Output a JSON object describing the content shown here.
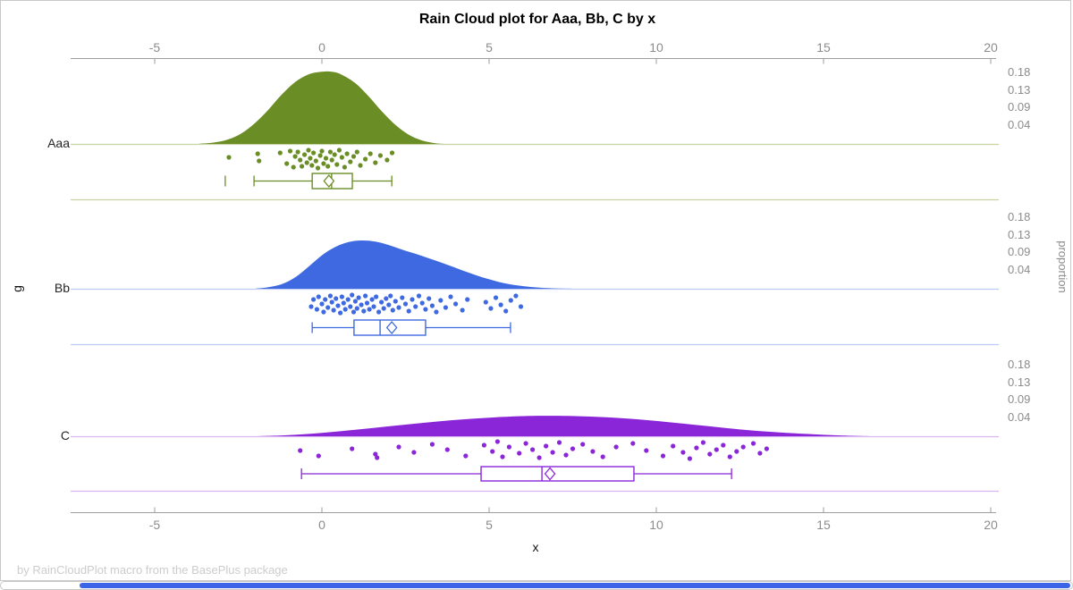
{
  "title": "Rain Cloud plot for Aaa, Bb, C by x",
  "footer_note": "by RainCloudPlot macro from the BasePlus package",
  "axes": {
    "x_label": "x",
    "y_label": "g",
    "y2_label": "proportion",
    "x_tick_labels": [
      "-5",
      "0",
      "5",
      "10",
      "15",
      "20"
    ],
    "y2_tick_labels": [
      "0.18",
      "0.13",
      "0.09",
      "0.04"
    ]
  },
  "colors": {
    "axis_line": "#9d9d9d",
    "tick_label": "#8c8c8c",
    "frame_border": "#c9c9c9",
    "footer_text": "#cccccc",
    "scrollbar_thumb": "#3c64e6"
  },
  "chart_data": {
    "type": "raincloud",
    "title": "Rain Cloud plot for Aaa, Bb, C by x",
    "xlabel": "x",
    "ylabel": "g",
    "y2label": "proportion",
    "x_axis_range": [
      -7.5,
      20.2
    ],
    "x_ticks": [
      -5,
      0,
      5,
      10,
      15,
      20
    ],
    "proportion_ticks": [
      0.18,
      0.13,
      0.09,
      0.04
    ],
    "legend": "none",
    "groups": [
      {
        "name": "Aaa",
        "color": "#6a8d26",
        "light_color": "#c8d2a4",
        "density": [
          [
            -3.7,
            0
          ],
          [
            -3.2,
            0.004
          ],
          [
            -2.8,
            0.012
          ],
          [
            -2.4,
            0.028
          ],
          [
            -2.0,
            0.055
          ],
          [
            -1.6,
            0.09
          ],
          [
            -1.2,
            0.13
          ],
          [
            -0.8,
            0.163
          ],
          [
            -0.4,
            0.183
          ],
          [
            0,
            0.19
          ],
          [
            0.3,
            0.19
          ],
          [
            0.6,
            0.182
          ],
          [
            1.0,
            0.16
          ],
          [
            1.4,
            0.125
          ],
          [
            1.8,
            0.085
          ],
          [
            2.2,
            0.05
          ],
          [
            2.6,
            0.024
          ],
          [
            3.0,
            0.009
          ],
          [
            3.4,
            0.002
          ],
          [
            3.7,
            0
          ]
        ],
        "points": [
          [
            -2.78,
            15
          ],
          [
            -1.92,
            11
          ],
          [
            -1.88,
            19
          ],
          [
            -1.25,
            10
          ],
          [
            -1.05,
            22
          ],
          [
            -0.95,
            8
          ],
          [
            -0.85,
            26
          ],
          [
            -0.8,
            14
          ],
          [
            -0.72,
            9
          ],
          [
            -0.65,
            18
          ],
          [
            -0.6,
            25
          ],
          [
            -0.52,
            12
          ],
          [
            -0.45,
            21
          ],
          [
            -0.4,
            7
          ],
          [
            -0.35,
            16
          ],
          [
            -0.3,
            24
          ],
          [
            -0.25,
            10
          ],
          [
            -0.18,
            19
          ],
          [
            -0.12,
            27
          ],
          [
            -0.05,
            13
          ],
          [
            0,
            8
          ],
          [
            0.05,
            22
          ],
          [
            0.12,
            16
          ],
          [
            0.18,
            25
          ],
          [
            0.25,
            9
          ],
          [
            0.3,
            18
          ],
          [
            0.38,
            12
          ],
          [
            0.45,
            23
          ],
          [
            0.52,
            7
          ],
          [
            0.6,
            15
          ],
          [
            0.68,
            26
          ],
          [
            0.75,
            11
          ],
          [
            0.85,
            20
          ],
          [
            0.95,
            14
          ],
          [
            1.05,
            9
          ],
          [
            1.15,
            24
          ],
          [
            1.3,
            17
          ],
          [
            1.45,
            11
          ],
          [
            1.6,
            21
          ],
          [
            1.75,
            13
          ],
          [
            1.95,
            18
          ],
          [
            2.1,
            10
          ]
        ],
        "box": {
          "outliers": [
            -2.89
          ],
          "whisker_low": -2.03,
          "q1": -0.29,
          "median": 0.29,
          "q3": 0.91,
          "whisker_high": 2.09,
          "mean": 0.21
        }
      },
      {
        "name": "Bb",
        "color": "#3e69e1",
        "light_color": "#bdccf2",
        "density": [
          [
            -2.0,
            0
          ],
          [
            -1.6,
            0.004
          ],
          [
            -1.2,
            0.012
          ],
          [
            -0.8,
            0.03
          ],
          [
            -0.4,
            0.058
          ],
          [
            0,
            0.088
          ],
          [
            0.4,
            0.11
          ],
          [
            0.8,
            0.123
          ],
          [
            1.2,
            0.127
          ],
          [
            1.6,
            0.124
          ],
          [
            2.0,
            0.115
          ],
          [
            2.4,
            0.103
          ],
          [
            2.8,
            0.092
          ],
          [
            3.2,
            0.08
          ],
          [
            3.6,
            0.068
          ],
          [
            4.0,
            0.055
          ],
          [
            4.4,
            0.042
          ],
          [
            4.8,
            0.03
          ],
          [
            5.2,
            0.02
          ],
          [
            5.6,
            0.012
          ],
          [
            6.0,
            0.007
          ],
          [
            6.5,
            0.003
          ],
          [
            7.0,
            0.001
          ],
          [
            7.5,
            0
          ]
        ],
        "points": [
          [
            -0.32,
            20
          ],
          [
            -0.25,
            12
          ],
          [
            -0.15,
            23
          ],
          [
            -0.1,
            9
          ],
          [
            0,
            17
          ],
          [
            0.05,
            26
          ],
          [
            0.1,
            12
          ],
          [
            0.18,
            21
          ],
          [
            0.25,
            8
          ],
          [
            0.3,
            15
          ],
          [
            0.35,
            24
          ],
          [
            0.42,
            11
          ],
          [
            0.48,
            19
          ],
          [
            0.55,
            27
          ],
          [
            0.6,
            9
          ],
          [
            0.65,
            16
          ],
          [
            0.7,
            23
          ],
          [
            0.78,
            12
          ],
          [
            0.85,
            20
          ],
          [
            0.9,
            7
          ],
          [
            0.95,
            26
          ],
          [
            1.0,
            14
          ],
          [
            1.05,
            22
          ],
          [
            1.1,
            10
          ],
          [
            1.18,
            18
          ],
          [
            1.25,
            25
          ],
          [
            1.3,
            8
          ],
          [
            1.35,
            16
          ],
          [
            1.42,
            23
          ],
          [
            1.5,
            12
          ],
          [
            1.55,
            20
          ],
          [
            1.62,
            9
          ],
          [
            1.7,
            26
          ],
          [
            1.78,
            15
          ],
          [
            1.85,
            22
          ],
          [
            1.92,
            11
          ],
          [
            2.0,
            18
          ],
          [
            2.05,
            8
          ],
          [
            2.12,
            24
          ],
          [
            2.2,
            14
          ],
          [
            2.3,
            21
          ],
          [
            2.4,
            10
          ],
          [
            2.5,
            17
          ],
          [
            2.6,
            25
          ],
          [
            2.7,
            12
          ],
          [
            2.8,
            20
          ],
          [
            2.9,
            8
          ],
          [
            3.0,
            16
          ],
          [
            3.1,
            23
          ],
          [
            3.2,
            11
          ],
          [
            3.3,
            19
          ],
          [
            3.42,
            26
          ],
          [
            3.55,
            13
          ],
          [
            3.7,
            21
          ],
          [
            3.85,
            9
          ],
          [
            4.0,
            17
          ],
          [
            4.2,
            24
          ],
          [
            4.35,
            12
          ],
          [
            4.9,
            15
          ],
          [
            5.05,
            22
          ],
          [
            5.2,
            10
          ],
          [
            5.35,
            18
          ],
          [
            5.5,
            25
          ],
          [
            5.65,
            13
          ],
          [
            5.8,
            8
          ],
          [
            5.95,
            20
          ]
        ],
        "box": {
          "outliers": [],
          "whisker_low": -0.29,
          "q1": 0.96,
          "median": 1.74,
          "q3": 3.1,
          "whisker_high": 5.64,
          "mean": 2.09
        }
      },
      {
        "name": "C",
        "color": "#8b26d8",
        "light_color": "#d9b6ee",
        "density": [
          [
            -2.0,
            0
          ],
          [
            -1.0,
            0.003
          ],
          [
            0,
            0.009
          ],
          [
            1.0,
            0.017
          ],
          [
            2.0,
            0.026
          ],
          [
            3.0,
            0.035
          ],
          [
            4.0,
            0.043
          ],
          [
            5.0,
            0.049
          ],
          [
            6.0,
            0.053
          ],
          [
            6.8,
            0.054
          ],
          [
            7.6,
            0.053
          ],
          [
            8.5,
            0.05
          ],
          [
            9.5,
            0.044
          ],
          [
            10.5,
            0.036
          ],
          [
            11.5,
            0.027
          ],
          [
            12.5,
            0.018
          ],
          [
            13.5,
            0.011
          ],
          [
            14.5,
            0.006
          ],
          [
            15.5,
            0.002
          ],
          [
            16.5,
            0
          ]
        ],
        "points": [
          [
            -0.65,
            16
          ],
          [
            -0.1,
            22
          ],
          [
            0.9,
            14
          ],
          [
            1.6,
            20
          ],
          [
            1.65,
            24
          ],
          [
            2.3,
            12
          ],
          [
            2.75,
            18
          ],
          [
            3.3,
            9
          ],
          [
            3.75,
            15
          ],
          [
            4.3,
            22
          ],
          [
            4.85,
            10
          ],
          [
            5.1,
            17
          ],
          [
            5.25,
            6
          ],
          [
            5.4,
            23
          ],
          [
            5.6,
            12
          ],
          [
            5.9,
            19
          ],
          [
            6.1,
            8
          ],
          [
            6.3,
            15
          ],
          [
            6.5,
            24
          ],
          [
            6.7,
            11
          ],
          [
            6.9,
            18
          ],
          [
            7.1,
            7
          ],
          [
            7.3,
            21
          ],
          [
            7.5,
            14
          ],
          [
            7.8,
            9
          ],
          [
            8.1,
            17
          ],
          [
            8.4,
            23
          ],
          [
            8.8,
            12
          ],
          [
            9.3,
            8
          ],
          [
            9.7,
            16
          ],
          [
            10.2,
            22
          ],
          [
            10.5,
            11
          ],
          [
            10.8,
            18
          ],
          [
            11.0,
            25
          ],
          [
            11.2,
            13
          ],
          [
            11.4,
            7
          ],
          [
            11.6,
            20
          ],
          [
            11.8,
            15
          ],
          [
            12.0,
            10
          ],
          [
            12.2,
            23
          ],
          [
            12.4,
            17
          ],
          [
            12.6,
            12
          ],
          [
            12.9,
            8
          ],
          [
            13.1,
            19
          ],
          [
            13.3,
            14
          ]
        ],
        "box": {
          "outliers": [],
          "whisker_low": -0.61,
          "q1": 4.76,
          "median": 6.58,
          "q3": 9.33,
          "whisker_high": 12.25,
          "mean": 6.82
        }
      }
    ]
  }
}
